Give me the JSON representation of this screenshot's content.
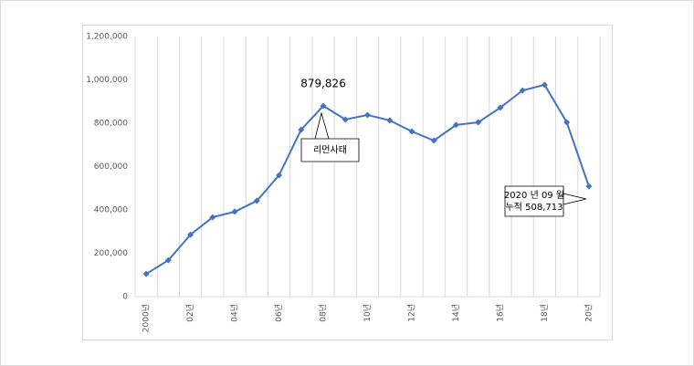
{
  "chart_data": {
    "type": "line",
    "categories": [
      "2000년",
      null,
      "02년",
      null,
      "04년",
      null,
      "06년",
      null,
      "08년",
      null,
      "10년",
      null,
      "12년",
      null,
      "14년",
      null,
      "16년",
      null,
      "18년",
      null,
      "20년"
    ],
    "series": [
      {
        "color": "#4472c4",
        "values": [
          105000,
          168000,
          286000,
          366000,
          392000,
          442000,
          560000,
          770000,
          879826,
          817000,
          838000,
          813000,
          762000,
          720000,
          792000,
          804000,
          872000,
          951000,
          977000,
          804000,
          508713
        ],
        "value_labels": [
          null,
          null,
          null,
          null,
          null,
          null,
          null,
          null,
          "879,826",
          null,
          null,
          null,
          null,
          null,
          null,
          null,
          null,
          null,
          null,
          null,
          null
        ]
      }
    ],
    "ylim": [
      0,
      1200000
    ],
    "yticks": [
      0,
      {
        "value": 200000,
        "label": "200,000"
      },
      {
        "value": 400000,
        "label": "400,000"
      },
      {
        "value": 600000,
        "label": "600,000"
      },
      {
        "value": 800000,
        "label": "800,000"
      },
      {
        "value": 1000000,
        "label": "1,000,000"
      },
      {
        "value": 1200000,
        "label": "1,200,000"
      }
    ],
    "grid": "x",
    "annotations": [
      {
        "text": [
          "리먼사태"
        ]
      },
      {
        "text": [
          "2020 년 09 월",
          "누적 508,713"
        ]
      }
    ]
  }
}
